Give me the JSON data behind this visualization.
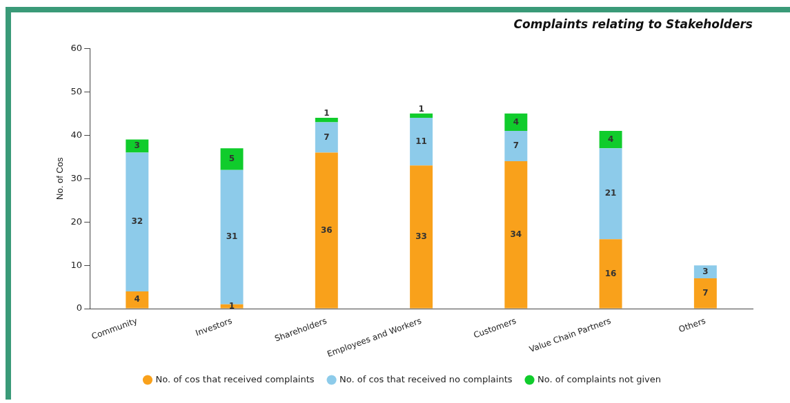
{
  "chart_data": {
    "type": "bar",
    "title": "Complaints relating to Stakeholders",
    "ylabel": "No. of Cos",
    "categories": [
      "Community",
      "Investors",
      "Shareholders",
      "Employees and Workers",
      "Customers",
      "Value Chain Partners",
      "Others"
    ],
    "series": [
      {
        "name": "No. of cos that received complaints",
        "color": "#f9a11b",
        "values": [
          4,
          1,
          36,
          33,
          34,
          16,
          7
        ]
      },
      {
        "name": "No. of cos that received no complaints",
        "color": "#8dcbea",
        "values": [
          32,
          31,
          7,
          11,
          7,
          21,
          3
        ]
      },
      {
        "name": "No. of complaints not given",
        "color": "#10cc2c",
        "values": [
          3,
          5,
          1,
          1,
          4,
          4,
          null
        ]
      }
    ],
    "stacked": true,
    "ylim": [
      0,
      60
    ],
    "yticks": [
      0,
      10,
      20,
      30,
      40,
      50,
      60
    ],
    "grid": false,
    "legend": "bottom",
    "data_labels": true
  }
}
